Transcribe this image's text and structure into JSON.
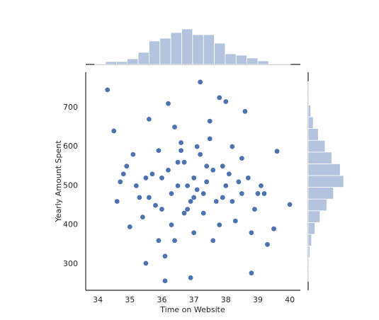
{
  "chart_data": {
    "type": "scatter",
    "xlabel": "Time on Website",
    "ylabel": "Yearly Amount Spent",
    "color": "#4c72b0",
    "hist_color": "#b3c2dd",
    "xlim": [
      33.62,
      40.33
    ],
    "ylim": [
      233,
      790
    ],
    "xticks": [
      34,
      35,
      36,
      37,
      38,
      39,
      40
    ],
    "yticks": [
      300,
      400,
      500,
      600,
      700
    ],
    "x": [
      34.3,
      37.2,
      37.8,
      36.1,
      36.9,
      38.8,
      40.0,
      39.6,
      39.3,
      35.5,
      34.6,
      34.5,
      35.0,
      35.1,
      35.6,
      36.2,
      36.4,
      37.5,
      38.0,
      38.6,
      36.8,
      37.0,
      37.3,
      37.6,
      36.5,
      36.7,
      37.9,
      38.2,
      38.4,
      35.9,
      35.8,
      36.0,
      36.3,
      37.1,
      37.4,
      37.7,
      38.1,
      38.3,
      38.5,
      38.9,
      39.1,
      34.9,
      35.2,
      35.4,
      36.6,
      35.7,
      36.8,
      37.2,
      37.0,
      36.4,
      38.7,
      39.0,
      39.5,
      35.3,
      34.7,
      36.9,
      37.5,
      37.8,
      36.2,
      36.6,
      37.3,
      38.0,
      38.2,
      35.9,
      36.1,
      37.6,
      37.1,
      36.7,
      38.5,
      38.8,
      35.6,
      36.3,
      37.4,
      37.9,
      36.0,
      35.5,
      39.2,
      34.8,
      37.0,
      36.5
    ],
    "y": [
      745,
      765,
      725,
      257,
      265,
      277,
      452,
      588,
      350,
      302,
      460,
      640,
      395,
      580,
      670,
      710,
      650,
      665,
      715,
      690,
      500,
      520,
      480,
      540,
      560,
      430,
      470,
      600,
      510,
      590,
      450,
      520,
      480,
      490,
      550,
      460,
      530,
      410,
      570,
      440,
      500,
      550,
      500,
      420,
      610,
      530,
      440,
      580,
      380,
      360,
      520,
      480,
      390,
      470,
      510,
      460,
      620,
      400,
      540,
      590,
      430,
      500,
      460,
      360,
      320,
      360,
      600,
      560,
      480,
      380,
      470,
      400,
      510,
      550,
      440,
      520,
      480,
      530,
      470,
      500
    ],
    "marginal_x": {
      "bins": [
        33.9,
        34.24,
        34.58,
        34.92,
        35.26,
        35.6,
        35.94,
        36.28,
        36.62,
        36.96,
        37.3,
        37.64,
        37.98,
        38.32,
        38.66,
        39.0,
        39.34,
        39.68,
        40.02
      ],
      "counts": [
        1,
        4,
        4,
        8,
        17,
        33,
        37,
        45,
        50,
        42,
        42,
        30,
        15,
        13,
        9,
        5,
        1,
        1
      ]
    },
    "marginal_y": {
      "bins": [
        256,
        286,
        316,
        346,
        376,
        406,
        436,
        466,
        496,
        526,
        556,
        586,
        616,
        646,
        676,
        706,
        736,
        766
      ],
      "counts": [
        1,
        1,
        2,
        4,
        8,
        14,
        22,
        30,
        42,
        38,
        28,
        20,
        12,
        6,
        3,
        1,
        1
      ]
    }
  }
}
